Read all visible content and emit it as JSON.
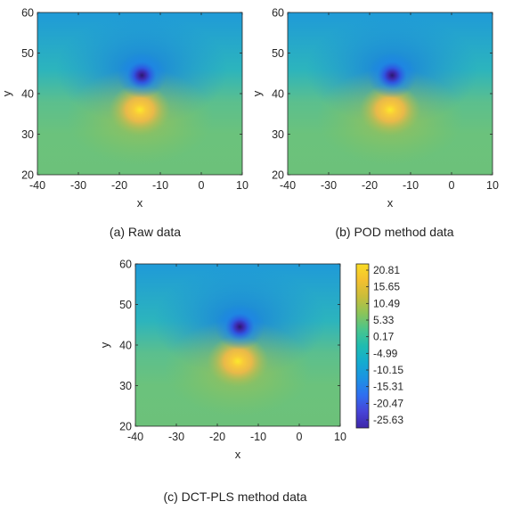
{
  "chart_data": [
    {
      "type": "heatmap",
      "caption": "(a) Raw data",
      "xlabel": "x",
      "ylabel": "y",
      "xlim": [
        -40,
        10
      ],
      "ylim": [
        20,
        60
      ],
      "xticks": [
        -40,
        -30,
        -20,
        -10,
        0,
        10
      ],
      "yticks": [
        20,
        30,
        40,
        50,
        60
      ],
      "field": {
        "negative_peak": {
          "x": -14.5,
          "y": 44.5,
          "value": -25.63
        },
        "positive_peak": {
          "x": -15,
          "y": 36,
          "value": 20.81
        }
      }
    },
    {
      "type": "heatmap",
      "caption": "(b) POD method data",
      "xlabel": "x",
      "ylabel": "y",
      "xlim": [
        -40,
        10
      ],
      "ylim": [
        20,
        60
      ],
      "xticks": [
        -40,
        -30,
        -20,
        -10,
        0,
        10
      ],
      "yticks": [
        20,
        30,
        40,
        50,
        60
      ],
      "field": {
        "negative_peak": {
          "x": -14.5,
          "y": 44.5,
          "value": -25.63
        },
        "positive_peak": {
          "x": -15,
          "y": 36,
          "value": 20.81
        }
      }
    },
    {
      "type": "heatmap",
      "caption": "(c) DCT-PLS method data",
      "xlabel": "x",
      "ylabel": "y",
      "xlim": [
        -40,
        10
      ],
      "ylim": [
        20,
        60
      ],
      "xticks": [
        -40,
        -30,
        -20,
        -10,
        0,
        10
      ],
      "yticks": [
        20,
        30,
        40,
        50,
        60
      ],
      "field": {
        "negative_peak": {
          "x": -14.5,
          "y": 44.5,
          "value": -25.63
        },
        "positive_peak": {
          "x": -15,
          "y": 36,
          "value": 20.81
        }
      },
      "colorbar": {
        "ticks": [
          "20.81",
          "15.65",
          "10.49",
          "5.33",
          "0.17",
          "-4.99",
          "-10.15",
          "-15.31",
          "-20.47",
          "-25.63"
        ],
        "range": [
          -25.63,
          20.81
        ],
        "colormap": "parula",
        "colors": [
          "#3e26a8",
          "#4744d8",
          "#2f6ff0",
          "#1c92e3",
          "#14abd0",
          "#1fbcb0",
          "#4ac58c",
          "#8cc459",
          "#c9bd3b",
          "#f4c030",
          "#f9dc24"
        ]
      }
    }
  ]
}
